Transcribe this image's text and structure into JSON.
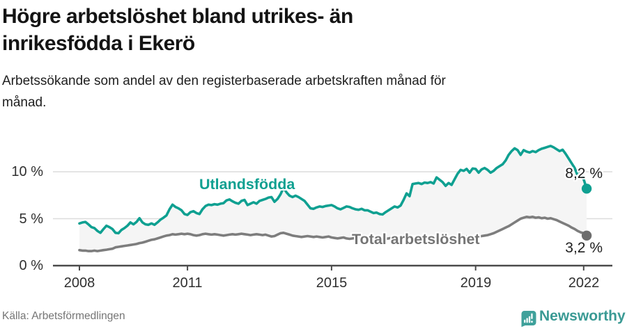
{
  "header": {
    "title_line1": "Högre arbetslöshet bland utrikes- än",
    "title_line2": "inrikesfödda i Ekerö",
    "subtitle_line1": "Arbetssökande som andel av den registerbaserade arbetskraften månad för",
    "subtitle_line2": "månad."
  },
  "chart_data": {
    "type": "line",
    "title": "Högre arbetslöshet bland utrikes- än inrikesfödda i Ekerö",
    "subtitle": "Arbetssökande som andel av den registerbaserade arbetskraften månad för månad.",
    "x_unit": "month",
    "x_start_year": 2008,
    "x_end_label": "2022-02",
    "x_tick_years": [
      2008,
      2011,
      2015,
      2019,
      2022
    ],
    "x_tick_labels": [
      "2008",
      "2011",
      "2015",
      "2019",
      "2022"
    ],
    "y_ticks": [
      0,
      5,
      10
    ],
    "y_tick_labels": [
      "0 %",
      "5 %",
      "10 %"
    ],
    "ylim": [
      0,
      13.6
    ],
    "grid": true,
    "band_fill_between_series": true,
    "colors": {
      "utlandsfodda": "#0fa091",
      "utlandsfodda_dot": "#0fa091",
      "total": "#7d7d7d",
      "total_dot": "#6d6d6d",
      "band": "#f5f5f5",
      "grid": "#dcdcdc",
      "axis": "#4a4a4a"
    },
    "series": [
      {
        "name": "Utlandsfödda",
        "end_label": "8,2 %",
        "end_value": 8.2,
        "values": [
          4.5,
          4.6,
          4.65,
          4.4,
          4.1,
          4.0,
          3.7,
          3.5,
          3.9,
          4.25,
          4.1,
          3.9,
          3.5,
          3.45,
          3.8,
          4.0,
          4.25,
          4.6,
          4.4,
          4.65,
          5.05,
          4.6,
          4.4,
          4.35,
          4.5,
          4.35,
          4.6,
          4.9,
          5.1,
          5.35,
          6.0,
          6.5,
          6.25,
          6.1,
          5.9,
          5.5,
          5.4,
          5.7,
          5.8,
          5.6,
          5.5,
          6.0,
          6.35,
          6.5,
          6.45,
          6.55,
          6.5,
          6.6,
          6.65,
          6.95,
          7.05,
          6.85,
          6.7,
          6.6,
          6.9,
          7.0,
          6.45,
          6.6,
          6.75,
          6.6,
          6.9,
          7.0,
          7.1,
          7.25,
          7.3,
          6.8,
          7.1,
          7.6,
          8.3,
          7.8,
          7.45,
          7.3,
          7.45,
          7.3,
          7.1,
          6.9,
          6.5,
          6.1,
          6.05,
          6.2,
          6.3,
          6.25,
          6.35,
          6.4,
          6.45,
          6.3,
          6.1,
          6.0,
          6.15,
          6.3,
          6.25,
          6.1,
          6.0,
          5.95,
          6.05,
          5.9,
          5.9,
          5.75,
          5.6,
          5.65,
          5.5,
          5.45,
          5.7,
          5.9,
          6.1,
          6.3,
          6.2,
          6.4,
          7.0,
          7.7,
          7.4,
          8.7,
          8.75,
          8.8,
          8.7,
          8.85,
          8.8,
          8.9,
          8.75,
          9.4,
          9.15,
          8.9,
          8.5,
          8.8,
          8.6,
          9.2,
          9.8,
          10.2,
          10.1,
          10.3,
          9.9,
          10.35,
          10.3,
          9.9,
          10.25,
          10.4,
          10.2,
          9.9,
          10.1,
          10.4,
          10.6,
          10.8,
          11.2,
          11.8,
          12.2,
          12.5,
          12.3,
          11.8,
          12.3,
          12.15,
          12.05,
          12.2,
          12.1,
          12.3,
          12.45,
          12.55,
          12.65,
          12.75,
          12.6,
          12.4,
          12.2,
          12.35,
          11.9,
          11.4,
          10.9,
          10.4,
          9.6,
          9.9,
          9.2,
          8.2
        ]
      },
      {
        "name": "Total arbetslöshet",
        "end_label": "3,2 %",
        "end_value": 3.2,
        "values": [
          1.65,
          1.6,
          1.6,
          1.55,
          1.55,
          1.6,
          1.55,
          1.6,
          1.65,
          1.7,
          1.75,
          1.8,
          1.95,
          2.0,
          2.05,
          2.1,
          2.15,
          2.2,
          2.25,
          2.3,
          2.4,
          2.45,
          2.55,
          2.65,
          2.75,
          2.8,
          2.9,
          3.0,
          3.1,
          3.2,
          3.25,
          3.35,
          3.3,
          3.35,
          3.4,
          3.35,
          3.4,
          3.35,
          3.25,
          3.2,
          3.25,
          3.35,
          3.4,
          3.35,
          3.3,
          3.35,
          3.3,
          3.25,
          3.2,
          3.25,
          3.3,
          3.35,
          3.3,
          3.35,
          3.4,
          3.35,
          3.3,
          3.25,
          3.3,
          3.35,
          3.3,
          3.25,
          3.3,
          3.2,
          3.1,
          3.15,
          3.3,
          3.45,
          3.5,
          3.4,
          3.3,
          3.2,
          3.15,
          3.1,
          3.05,
          3.1,
          3.15,
          3.1,
          3.05,
          3.1,
          3.05,
          3.0,
          3.05,
          3.1,
          3.0,
          2.95,
          2.9,
          2.95,
          3.0,
          2.9,
          2.85,
          2.9,
          2.95,
          2.9,
          2.85,
          2.9,
          2.85,
          2.8,
          2.85,
          2.9,
          2.85,
          2.8,
          2.85,
          2.9,
          2.95,
          2.9,
          2.85,
          2.9,
          2.95,
          3.0,
          3.05,
          3.0,
          2.95,
          3.0,
          3.05,
          3.1,
          3.05,
          3.0,
          3.05,
          3.1,
          3.05,
          3.0,
          2.95,
          3.0,
          3.05,
          3.0,
          2.95,
          3.0,
          3.05,
          3.1,
          3.05,
          3.1,
          3.1,
          3.1,
          3.15,
          3.2,
          3.25,
          3.35,
          3.45,
          3.6,
          3.75,
          3.9,
          4.05,
          4.2,
          4.4,
          4.6,
          4.8,
          5.0,
          5.1,
          5.2,
          5.15,
          5.2,
          5.1,
          5.15,
          5.05,
          5.1,
          5.0,
          5.05,
          4.95,
          4.85,
          4.7,
          4.55,
          4.4,
          4.25,
          4.05,
          3.9,
          3.7,
          3.55,
          3.45,
          3.2
        ]
      }
    ]
  },
  "footer": {
    "source": "Källa: Arbetsförmedlingen",
    "brand": "Newsworthy",
    "brand_icon": "bar-chart-bubble-icon",
    "brand_color": "#3a9a94"
  }
}
